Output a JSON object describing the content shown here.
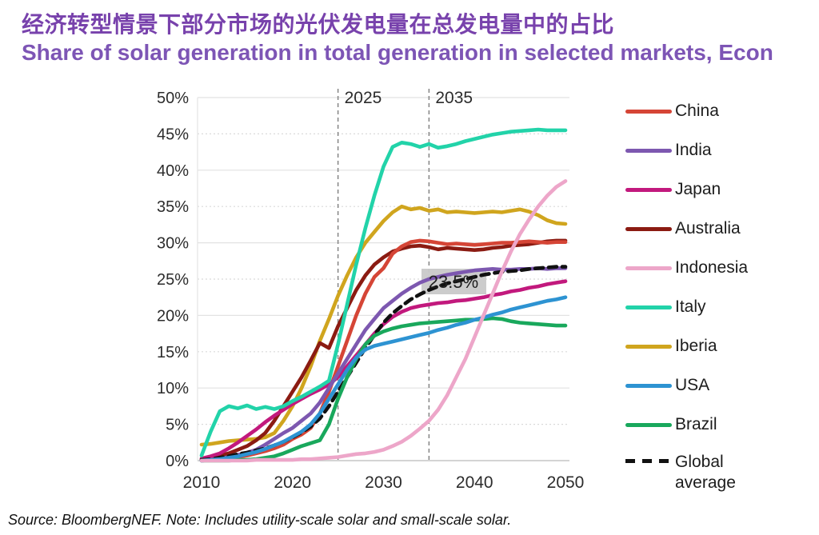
{
  "header": {
    "title_zh": "经济转型情景下部分市场的光伏发电量在总发电量中的占比",
    "title_en": "Share of solar generation in total generation in selected markets, Econ",
    "title_zh_color": "#7842AC",
    "title_en_color": "#7D55B5"
  },
  "footer": {
    "source": "Source: BloombergNEF. Note: Includes utility-scale solar and small-scale solar."
  },
  "chart_data": {
    "type": "line",
    "xlabel": "",
    "ylabel": "",
    "xlim": [
      2010,
      2050
    ],
    "ylim": [
      0,
      50
    ],
    "grid": true,
    "legend_position": "right",
    "x_tick_values": [
      2010,
      2020,
      2030,
      2040,
      2050
    ],
    "x_tick_labels": [
      "2010",
      "2020",
      "2030",
      "2040",
      "2050"
    ],
    "y_tick_values": [
      0,
      5,
      10,
      15,
      20,
      25,
      30,
      35,
      40,
      45,
      50
    ],
    "y_tick_labels": [
      "0%",
      "5%",
      "10%",
      "15%",
      "20%",
      "25%",
      "30%",
      "35%",
      "40%",
      "45%",
      "50%"
    ],
    "years": [
      2010,
      2011,
      2012,
      2013,
      2014,
      2015,
      2016,
      2017,
      2018,
      2019,
      2020,
      2021,
      2022,
      2023,
      2024,
      2025,
      2026,
      2027,
      2028,
      2029,
      2030,
      2031,
      2032,
      2033,
      2034,
      2035,
      2036,
      2037,
      2038,
      2039,
      2040,
      2041,
      2042,
      2043,
      2044,
      2045,
      2046,
      2047,
      2048,
      2049,
      2050
    ],
    "annotations": {
      "vlines": [
        {
          "year": 2025,
          "label": "2025"
        },
        {
          "year": 2035,
          "label": "2035"
        }
      ],
      "callout": {
        "label": "23.5%",
        "year": 2035,
        "value": 23.5
      }
    },
    "series": [
      {
        "name": "Iberia",
        "color": "#D0A51E",
        "values": [
          2.2,
          2.3,
          2.5,
          2.7,
          2.8,
          2.9,
          3.0,
          3.2,
          3.8,
          5.5,
          7.5,
          10.0,
          13.0,
          16.5,
          19.5,
          22.7,
          25.5,
          28.0,
          30.0,
          31.5,
          33.0,
          34.2,
          35.0,
          34.6,
          34.8,
          34.4,
          34.6,
          34.2,
          34.3,
          34.2,
          34.1,
          34.2,
          34.3,
          34.2,
          34.4,
          34.6,
          34.3,
          33.8,
          33.1,
          32.7,
          32.6
        ]
      },
      {
        "name": "Australia",
        "color": "#8B1B12",
        "values": [
          0.2,
          0.4,
          0.7,
          1.0,
          1.5,
          2.0,
          2.8,
          3.8,
          5.5,
          7.5,
          9.5,
          11.5,
          13.8,
          16.2,
          15.5,
          18.5,
          21.0,
          23.5,
          25.5,
          27.0,
          28.0,
          28.8,
          29.2,
          29.5,
          29.6,
          29.4,
          29.1,
          29.3,
          29.2,
          29.1,
          29.0,
          29.1,
          29.3,
          29.4,
          29.6,
          29.7,
          29.8,
          30.0,
          30.2,
          30.3,
          30.3
        ]
      },
      {
        "name": "China",
        "color": "#D54536",
        "values": [
          0.0,
          0.1,
          0.2,
          0.3,
          0.5,
          0.7,
          1.0,
          1.3,
          1.7,
          2.2,
          3.0,
          3.6,
          4.5,
          6.5,
          9.5,
          13.0,
          16.5,
          20.0,
          23.0,
          25.3,
          26.5,
          28.5,
          29.5,
          30.1,
          30.3,
          30.2,
          30.0,
          29.8,
          29.9,
          29.8,
          29.7,
          29.8,
          29.9,
          30.0,
          30.0,
          30.1,
          30.2,
          30.1,
          30.0,
          30.1,
          30.1
        ]
      },
      {
        "name": "Japan",
        "color": "#C2197D",
        "values": [
          0.3,
          0.6,
          1.0,
          1.7,
          2.5,
          3.4,
          4.3,
          5.3,
          6.2,
          7.0,
          7.8,
          8.5,
          9.2,
          9.8,
          10.5,
          11.5,
          13.0,
          14.5,
          16.0,
          17.5,
          18.8,
          19.8,
          20.5,
          21.0,
          21.3,
          21.5,
          21.7,
          21.8,
          22.0,
          22.1,
          22.3,
          22.5,
          22.8,
          23.0,
          23.3,
          23.5,
          23.8,
          24.0,
          24.3,
          24.5,
          24.7
        ]
      },
      {
        "name": "India",
        "color": "#7D58B0",
        "values": [
          0.0,
          0.1,
          0.3,
          0.5,
          0.8,
          1.1,
          1.5,
          2.2,
          3.0,
          3.8,
          4.5,
          5.5,
          6.5,
          8.0,
          10.0,
          12.0,
          14.0,
          16.0,
          18.0,
          19.5,
          21.0,
          22.0,
          23.0,
          23.8,
          24.5,
          25.0,
          25.3,
          25.6,
          25.8,
          26.0,
          26.2,
          26.3,
          26.4,
          26.3,
          26.3,
          26.4,
          26.4,
          26.5,
          26.4,
          26.5,
          26.5
        ]
      },
      {
        "name": "Global average",
        "color": "#111111",
        "dashed": true,
        "values": [
          0.1,
          0.2,
          0.4,
          0.6,
          0.9,
          1.1,
          1.4,
          1.7,
          2.1,
          2.6,
          3.2,
          3.9,
          4.7,
          5.8,
          7.5,
          9.5,
          11.5,
          13.5,
          15.5,
          17.3,
          19.0,
          20.3,
          21.3,
          22.2,
          22.9,
          23.5,
          24.0,
          24.4,
          24.7,
          25.0,
          25.3,
          25.6,
          25.8,
          26.0,
          26.1,
          26.2,
          26.4,
          26.5,
          26.6,
          26.7,
          26.7
        ]
      },
      {
        "name": "Brazil",
        "color": "#19A85C",
        "values": [
          0.0,
          0.0,
          0.0,
          0.0,
          0.1,
          0.1,
          0.2,
          0.4,
          0.6,
          1.0,
          1.5,
          2.0,
          2.4,
          2.8,
          5.0,
          8.5,
          11.5,
          14.0,
          16.0,
          17.2,
          17.8,
          18.2,
          18.5,
          18.7,
          18.9,
          19.0,
          19.1,
          19.2,
          19.3,
          19.4,
          19.4,
          19.5,
          19.6,
          19.5,
          19.2,
          19.0,
          18.9,
          18.8,
          18.7,
          18.6,
          18.6
        ]
      },
      {
        "name": "USA",
        "color": "#2D93D2",
        "values": [
          0.0,
          0.1,
          0.2,
          0.4,
          0.6,
          0.9,
          1.2,
          1.6,
          2.1,
          2.6,
          3.3,
          4.0,
          5.0,
          6.5,
          8.5,
          10.5,
          12.5,
          14.2,
          15.3,
          15.8,
          16.1,
          16.4,
          16.7,
          17.0,
          17.3,
          17.6,
          18.0,
          18.3,
          18.7,
          19.0,
          19.4,
          19.7,
          20.1,
          20.4,
          20.8,
          21.1,
          21.4,
          21.7,
          22.0,
          22.2,
          22.5
        ]
      },
      {
        "name": "Italy",
        "color": "#22D3A9",
        "values": [
          0.7,
          4.0,
          6.8,
          7.5,
          7.2,
          7.6,
          7.1,
          7.4,
          7.1,
          7.5,
          8.2,
          8.8,
          9.5,
          10.2,
          11.0,
          16.0,
          21.5,
          27.0,
          32.0,
          36.5,
          40.5,
          43.2,
          43.8,
          43.6,
          43.2,
          43.6,
          43.1,
          43.3,
          43.6,
          44.0,
          44.3,
          44.6,
          44.9,
          45.1,
          45.3,
          45.4,
          45.5,
          45.6,
          45.5,
          45.5,
          45.5
        ]
      },
      {
        "name": "Indonesia",
        "color": "#EDA6C9",
        "values": [
          0.0,
          0.0,
          0.0,
          0.0,
          0.0,
          0.0,
          0.1,
          0.1,
          0.1,
          0.1,
          0.1,
          0.2,
          0.2,
          0.3,
          0.4,
          0.5,
          0.7,
          0.9,
          1.0,
          1.2,
          1.5,
          2.0,
          2.6,
          3.4,
          4.4,
          5.5,
          7.0,
          9.0,
          11.5,
          14.0,
          17.0,
          20.0,
          23.0,
          26.0,
          28.8,
          31.2,
          33.2,
          35.0,
          36.5,
          37.7,
          38.5
        ]
      }
    ],
    "legend_order": [
      "China",
      "India",
      "Japan",
      "Australia",
      "Indonesia",
      "Italy",
      "Iberia",
      "USA",
      "Brazil",
      "Global average"
    ]
  }
}
